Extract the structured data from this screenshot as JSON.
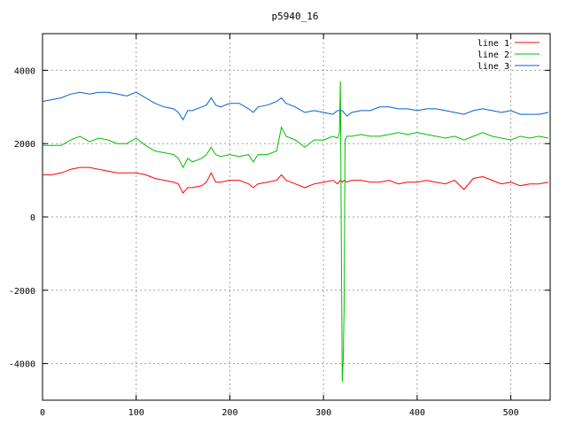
{
  "chart_data": {
    "type": "line",
    "title": "p5940_16",
    "xlabel": "",
    "ylabel": "",
    "xlim": [
      0,
      542
    ],
    "ylim": [
      -5000,
      5000
    ],
    "xticks": [
      0,
      100,
      200,
      300,
      400,
      500
    ],
    "yticks": [
      -4000,
      -2000,
      0,
      2000,
      4000
    ],
    "xtick_labels": [
      "0",
      "100",
      "200",
      "300",
      "400",
      "500"
    ],
    "ytick_labels": [
      "-4000",
      "-2000",
      "0",
      "2000",
      "4000"
    ],
    "grid": true,
    "legend_position": "top-right",
    "series": [
      {
        "name": "line 1",
        "color": "#ff0000",
        "x": [
          0,
          10,
          20,
          30,
          40,
          50,
          60,
          70,
          80,
          90,
          100,
          110,
          120,
          130,
          140,
          145,
          150,
          155,
          160,
          170,
          175,
          180,
          185,
          190,
          200,
          210,
          220,
          225,
          230,
          240,
          250,
          255,
          260,
          270,
          280,
          290,
          300,
          310,
          315,
          318,
          320,
          322,
          325,
          330,
          340,
          350,
          360,
          370,
          380,
          390,
          400,
          410,
          420,
          430,
          440,
          450,
          460,
          470,
          480,
          490,
          500,
          510,
          520,
          530,
          540
        ],
        "y": [
          1150,
          1150,
          1200,
          1300,
          1350,
          1350,
          1300,
          1250,
          1200,
          1200,
          1200,
          1150,
          1050,
          1000,
          950,
          900,
          650,
          800,
          800,
          850,
          950,
          1200,
          950,
          950,
          1000,
          1000,
          900,
          800,
          900,
          950,
          1000,
          1150,
          1000,
          900,
          800,
          900,
          950,
          1000,
          900,
          1000,
          950,
          1000,
          950,
          1000,
          1000,
          950,
          950,
          1000,
          900,
          950,
          950,
          1000,
          950,
          900,
          1000,
          750,
          1050,
          1100,
          1000,
          900,
          950,
          850,
          900,
          900,
          950
        ]
      },
      {
        "name": "line 2",
        "color": "#00c000",
        "x": [
          0,
          10,
          20,
          30,
          40,
          50,
          60,
          70,
          80,
          90,
          100,
          110,
          120,
          130,
          140,
          145,
          150,
          155,
          160,
          170,
          175,
          180,
          185,
          190,
          200,
          210,
          220,
          225,
          230,
          240,
          250,
          255,
          260,
          270,
          280,
          290,
          300,
          310,
          315,
          317,
          318,
          319,
          320,
          321,
          322,
          323,
          325,
          330,
          340,
          350,
          360,
          370,
          380,
          390,
          400,
          410,
          420,
          430,
          440,
          450,
          460,
          470,
          480,
          490,
          500,
          510,
          520,
          530,
          540
        ],
        "y": [
          1950,
          1950,
          1950,
          2100,
          2200,
          2050,
          2150,
          2100,
          2000,
          2000,
          2150,
          1950,
          1800,
          1750,
          1700,
          1600,
          1350,
          1600,
          1500,
          1600,
          1700,
          1900,
          1700,
          1650,
          1700,
          1650,
          1700,
          1500,
          1700,
          1700,
          1800,
          2450,
          2200,
          2100,
          1900,
          2100,
          2100,
          2200,
          2150,
          2300,
          3700,
          -400,
          -4500,
          -3900,
          -2500,
          2100,
          2200,
          2200,
          2250,
          2200,
          2200,
          2250,
          2300,
          2250,
          2300,
          2250,
          2200,
          2150,
          2200,
          2100,
          2200,
          2300,
          2200,
          2150,
          2100,
          2200,
          2150,
          2200,
          2150
        ]
      },
      {
        "name": "line 3",
        "color": "#0060d0",
        "x": [
          0,
          10,
          20,
          30,
          40,
          50,
          60,
          70,
          80,
          90,
          100,
          110,
          120,
          130,
          140,
          145,
          150,
          155,
          160,
          170,
          175,
          180,
          185,
          190,
          200,
          210,
          220,
          225,
          230,
          240,
          250,
          255,
          260,
          270,
          280,
          290,
          300,
          310,
          315,
          320,
          325,
          330,
          340,
          350,
          360,
          370,
          380,
          390,
          400,
          410,
          420,
          430,
          440,
          450,
          460,
          470,
          480,
          490,
          500,
          510,
          520,
          530,
          540
        ],
        "y": [
          3150,
          3200,
          3250,
          3350,
          3400,
          3350,
          3400,
          3400,
          3350,
          3300,
          3400,
          3250,
          3100,
          3000,
          2950,
          2850,
          2650,
          2900,
          2900,
          3000,
          3050,
          3250,
          3050,
          3000,
          3100,
          3100,
          2950,
          2850,
          3000,
          3050,
          3150,
          3250,
          3100,
          3000,
          2850,
          2900,
          2850,
          2800,
          2900,
          2900,
          2750,
          2850,
          2900,
          2900,
          3000,
          3000,
          2950,
          2950,
          2900,
          2950,
          2950,
          2900,
          2850,
          2800,
          2900,
          2950,
          2900,
          2850,
          2900,
          2800,
          2800,
          2800,
          2850
        ]
      }
    ]
  }
}
